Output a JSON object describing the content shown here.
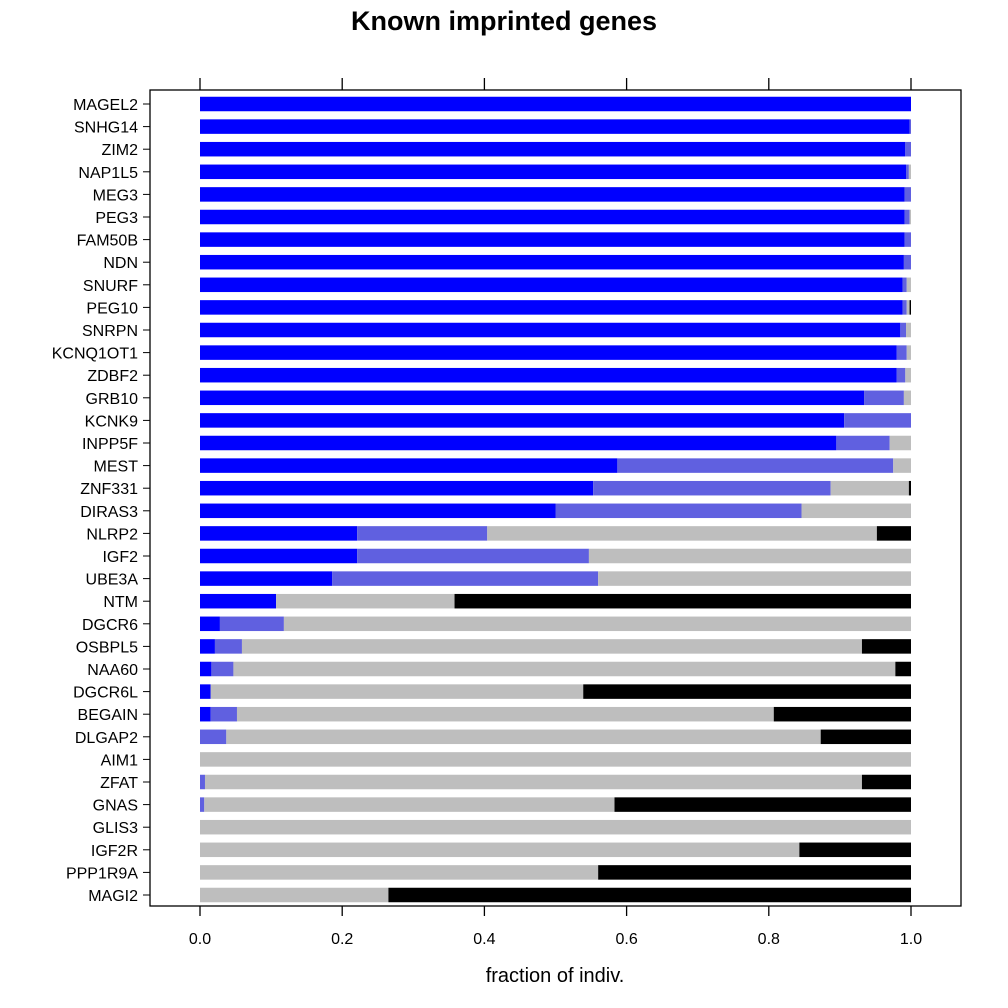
{
  "chart_data": {
    "type": "bar",
    "orientation": "horizontal",
    "stacked": true,
    "title": "Known imprinted genes",
    "xlabel": "fraction of indiv.",
    "ylabel": "",
    "xlim": [
      -0.07,
      1.07
    ],
    "xticks": [
      "0.0",
      "0.2",
      "0.4",
      "0.6",
      "0.8",
      "1.0"
    ],
    "grid": false,
    "legend": "none",
    "categories": [
      "MAGEL2",
      "SNHG14",
      "ZIM2",
      "NAP1L5",
      "MEG3",
      "PEG3",
      "FAM50B",
      "NDN",
      "SNURF",
      "PEG10",
      "SNRPN",
      "KCNQ1OT1",
      "ZDBF2",
      "GRB10",
      "KCNK9",
      "INPP5F",
      "MEST",
      "ZNF331",
      "DIRAS3",
      "NLRP2",
      "IGF2",
      "UBE3A",
      "NTM",
      "DGCR6",
      "OSBPL5",
      "NAA60",
      "DGCR6L",
      "BEGAIN",
      "DLGAP2",
      "AIM1",
      "ZFAT",
      "GNAS",
      "GLIS3",
      "IGF2R",
      "PPP1R9A",
      "MAGI2"
    ],
    "series": [
      {
        "color": "#0000ff",
        "values": [
          1.0,
          0.998,
          0.992,
          0.993,
          0.991,
          0.991,
          0.991,
          0.99,
          0.988,
          0.988,
          0.985,
          0.98,
          0.98,
          0.934,
          0.906,
          0.895,
          0.587,
          0.553,
          0.5,
          0.221,
          0.221,
          0.186,
          0.107,
          0.028,
          0.021,
          0.016,
          0.015,
          0.015,
          0.0,
          0.0,
          0.0,
          0.0,
          0.0,
          0.0,
          0.0,
          0.0
        ]
      },
      {
        "color": "#6060e0",
        "values": [
          0.0,
          0.002,
          0.008,
          0.004,
          0.009,
          0.007,
          0.009,
          0.01,
          0.006,
          0.006,
          0.008,
          0.014,
          0.012,
          0.056,
          0.094,
          0.075,
          0.388,
          0.334,
          0.346,
          0.183,
          0.326,
          0.374,
          0.0,
          0.09,
          0.038,
          0.031,
          0.0,
          0.037,
          0.037,
          0.0,
          0.007,
          0.006,
          0.0,
          0.0,
          0.0,
          0.0
        ]
      },
      {
        "color": "#bebebe",
        "values": [
          0.0,
          0.0,
          0.0,
          0.003,
          0.0,
          0.002,
          0.0,
          0.0,
          0.006,
          0.004,
          0.007,
          0.006,
          0.008,
          0.01,
          0.0,
          0.03,
          0.025,
          0.11,
          0.154,
          0.548,
          0.453,
          0.44,
          0.251,
          0.882,
          0.872,
          0.931,
          0.524,
          0.755,
          0.836,
          1.0,
          0.924,
          0.577,
          1.0,
          0.843,
          0.56,
          0.265
        ]
      },
      {
        "color": "#000000",
        "values": [
          0.0,
          0.0,
          0.0,
          0.0,
          0.0,
          0.0,
          0.0,
          0.0,
          0.0,
          0.002,
          0.0,
          0.0,
          0.0,
          0.0,
          0.0,
          0.0,
          0.0,
          0.003,
          0.0,
          0.048,
          0.0,
          0.0,
          0.642,
          0.0,
          0.069,
          0.022,
          0.461,
          0.193,
          0.127,
          0.0,
          0.069,
          0.417,
          0.0,
          0.157,
          0.44,
          0.735
        ]
      }
    ]
  }
}
